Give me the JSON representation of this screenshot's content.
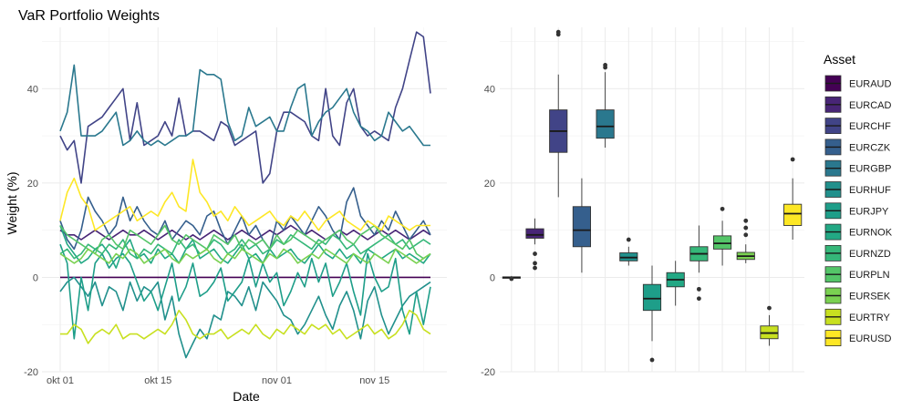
{
  "chart_data": [
    {
      "type": "line",
      "title": "VaR Portfolio Weights",
      "xlabel": "Date",
      "ylabel": "Weight (%)",
      "ylim": [
        -20,
        53
      ],
      "yticks": [
        -20,
        0,
        20,
        40
      ],
      "xlim": [
        0,
        53
      ],
      "xticks": [
        {
          "x": 0,
          "label": "okt 01"
        },
        {
          "x": 14,
          "label": "okt 15"
        },
        {
          "x": 31,
          "label": "nov 01"
        },
        {
          "x": 45,
          "label": "nov 15"
        }
      ],
      "x": [
        0,
        1,
        2,
        3,
        4,
        5,
        6,
        7,
        8,
        9,
        10,
        11,
        12,
        13,
        14,
        15,
        16,
        17,
        18,
        19,
        20,
        21,
        22,
        23,
        24,
        25,
        26,
        27,
        28,
        29,
        30,
        31,
        32,
        33,
        34,
        35,
        36,
        37,
        38,
        39,
        40,
        41,
        42,
        43,
        44,
        45,
        46,
        47,
        48,
        49,
        50,
        51,
        52,
        53
      ],
      "series": [
        {
          "name": "EURAUD",
          "color": "#440154",
          "values": [
            0,
            0,
            0,
            0,
            0,
            0,
            0,
            0,
            0,
            0,
            0,
            0,
            0,
            0,
            0,
            0,
            0,
            0,
            0,
            0,
            0,
            0,
            0,
            0,
            0,
            0,
            0,
            0,
            0,
            0,
            0,
            0,
            0,
            0,
            0,
            0,
            0,
            0,
            0,
            0,
            0,
            0,
            0,
            0,
            0,
            0,
            0,
            0,
            0,
            0,
            0,
            0,
            0,
            0
          ]
        },
        {
          "name": "EURCAD",
          "color": "#482576",
          "values": [
            10,
            9,
            9,
            8,
            9,
            10,
            9,
            8,
            9,
            10,
            9,
            9,
            10,
            9,
            8,
            9,
            10,
            9,
            8,
            9,
            8,
            9,
            10,
            9,
            8,
            9,
            10,
            9,
            8,
            9,
            10,
            9,
            10,
            11,
            10,
            9,
            10,
            9,
            8,
            9,
            10,
            9,
            10,
            9,
            8,
            9,
            10,
            9,
            10,
            9,
            8,
            9,
            10,
            9
          ]
        },
        {
          "name": "EURCHF",
          "color": "#414487",
          "values": [
            30,
            27,
            29,
            20,
            32,
            33,
            34,
            36,
            38,
            40,
            29,
            37,
            28,
            29,
            30,
            33,
            30,
            38,
            30,
            31,
            31,
            30,
            29,
            33,
            32,
            28,
            29,
            30,
            31,
            20,
            22,
            31,
            35,
            35,
            34,
            33,
            30,
            29,
            40,
            30,
            28,
            37,
            40,
            32,
            30,
            31,
            30,
            29,
            36,
            40,
            46,
            52,
            51,
            39
          ]
        },
        {
          "name": "EURCZK",
          "color": "#355F8D",
          "values": [
            12,
            8,
            6,
            10,
            17,
            14,
            12,
            9,
            11,
            17,
            12,
            15,
            12,
            10,
            9,
            12,
            8,
            10,
            12,
            11,
            9,
            13,
            14,
            10,
            7,
            10,
            13,
            9,
            11,
            8,
            6,
            12,
            10,
            13,
            11,
            9,
            12,
            15,
            13,
            10,
            8,
            16,
            19,
            13,
            11,
            9,
            12,
            10,
            14,
            11,
            8,
            10,
            12,
            9
          ]
        },
        {
          "name": "EURGBP",
          "color": "#2A788E",
          "values": [
            31,
            35,
            45,
            30,
            30,
            30,
            31,
            33,
            35,
            28,
            29,
            31,
            29,
            28,
            29,
            28,
            29,
            30,
            30,
            31,
            44,
            43,
            43,
            42,
            33,
            29,
            30,
            36,
            32,
            33,
            34,
            31,
            31,
            36,
            40,
            41,
            30,
            33,
            35,
            36,
            38,
            40,
            35,
            32,
            31,
            29,
            30,
            35,
            33,
            31,
            32,
            30,
            28,
            28
          ]
        },
        {
          "name": "EURHUF",
          "color": "#21908C",
          "values": [
            -3,
            -1,
            0,
            -2,
            -4,
            -1,
            -6,
            -2,
            -3,
            -7,
            -1,
            -5,
            -2,
            -3,
            -1,
            -9,
            -4,
            -12,
            -17,
            -14,
            -11,
            -13,
            -8,
            -9,
            -3,
            -4,
            -6,
            -2,
            -7,
            -1,
            -3,
            -5,
            -8,
            -9,
            -12,
            -10,
            -7,
            -4,
            -8,
            -11,
            -6,
            -3,
            -7,
            -13,
            -5,
            -2,
            -8,
            -12,
            -9,
            -6,
            -4,
            -3,
            -2,
            -1
          ]
        },
        {
          "name": "EURJPY",
          "color": "#1E9E89",
          "values": [
            7,
            3,
            -13,
            0,
            -7,
            3,
            5,
            2,
            4,
            5,
            3,
            -1,
            -5,
            -3,
            -7,
            -2,
            3,
            -5,
            -2,
            3,
            -4,
            -3,
            -1,
            2,
            -5,
            -3,
            -1,
            4,
            -2,
            3,
            -1,
            1,
            -6,
            -3,
            1,
            -2,
            4,
            -1,
            3,
            -4,
            -1,
            3,
            -3,
            -8,
            5,
            0,
            -3,
            -2,
            4,
            -7,
            -12,
            -3,
            -10,
            -2
          ]
        },
        {
          "name": "EURNOK",
          "color": "#22A884",
          "values": [
            11,
            7,
            5,
            3,
            4,
            6,
            7,
            5,
            2,
            6,
            8,
            4,
            5,
            3,
            6,
            4,
            5,
            3,
            6,
            8,
            4,
            5,
            6,
            4,
            3,
            5,
            7,
            4,
            5,
            3,
            6,
            4,
            5,
            6,
            4,
            3,
            5,
            7,
            5,
            4,
            6,
            4,
            5,
            3,
            6,
            5,
            4,
            5,
            6,
            4,
            5,
            4,
            3,
            5
          ]
        },
        {
          "name": "EURNZD",
          "color": "#35B779",
          "values": [
            5,
            6,
            4,
            5,
            7,
            6,
            5,
            7,
            6,
            8,
            5,
            4,
            6,
            5,
            7,
            6,
            5,
            8,
            6,
            7,
            5,
            6,
            8,
            7,
            5,
            6,
            8,
            6,
            7,
            5,
            6,
            8,
            7,
            9,
            8,
            7,
            6,
            8,
            7,
            9,
            8,
            6,
            7,
            5,
            6,
            7,
            8,
            9,
            7,
            8,
            6,
            7,
            8,
            7
          ]
        },
        {
          "name": "EURPLN",
          "color": "#54C568",
          "values": [
            11,
            9,
            8,
            7,
            6,
            5,
            8,
            9,
            7,
            6,
            10,
            9,
            8,
            7,
            9,
            11,
            8,
            7,
            9,
            8,
            7,
            6,
            9,
            8,
            7,
            9,
            6,
            8,
            7,
            8,
            6,
            9,
            7,
            8,
            10,
            9,
            8,
            7,
            8,
            9,
            10,
            8,
            7,
            9,
            10,
            11,
            9,
            8,
            7,
            6,
            8,
            5,
            4,
            5
          ]
        },
        {
          "name": "EURSEK",
          "color": "#7AD151",
          "values": [
            5,
            4,
            3,
            4,
            6,
            5,
            4,
            3,
            5,
            4,
            6,
            5,
            3,
            4,
            5,
            6,
            4,
            3,
            5,
            4,
            5,
            6,
            4,
            3,
            5,
            4,
            6,
            5,
            4,
            3,
            5,
            4,
            6,
            5,
            3,
            4,
            5,
            4,
            6,
            5,
            4,
            3,
            5,
            4,
            3,
            5,
            4,
            3,
            6,
            5,
            4,
            3,
            4,
            5
          ]
        },
        {
          "name": "EURTRY",
          "color": "#C8E020",
          "values": [
            -12,
            -12,
            -10,
            -11,
            -14,
            -12,
            -11,
            -12,
            -10,
            -13,
            -12,
            -12,
            -13,
            -12,
            -11,
            -12,
            -10,
            -7,
            -9,
            -12,
            -13,
            -12,
            -12,
            -11,
            -13,
            -12,
            -11,
            -12,
            -10,
            -12,
            -13,
            -11,
            -12,
            -10,
            -11,
            -12,
            -10,
            -11,
            -10,
            -12,
            -11,
            -13,
            -12,
            -11,
            -10,
            -12,
            -11,
            -13,
            -12,
            -10,
            -7,
            -8,
            -11,
            -12
          ]
        },
        {
          "name": "EURUSD",
          "color": "#FDE725",
          "values": [
            12,
            18,
            21,
            17,
            15,
            10,
            11,
            12,
            13,
            14,
            15,
            12,
            13,
            14,
            13,
            16,
            18,
            15,
            14,
            25,
            18,
            16,
            13,
            14,
            12,
            15,
            13,
            11,
            12,
            13,
            14,
            12,
            11,
            13,
            12,
            14,
            12,
            10,
            12,
            13,
            14,
            12,
            11,
            10,
            12,
            11,
            10,
            13,
            12,
            11,
            10,
            11,
            11,
            11
          ]
        }
      ]
    },
    {
      "type": "box",
      "xlabel": "",
      "ylabel": "",
      "ylim": [
        -20,
        53
      ],
      "yticks": [
        -20,
        0,
        20,
        40
      ],
      "legend_title": "Asset",
      "legend_position": "right",
      "boxes": [
        {
          "name": "EURAUD",
          "color": "#440154",
          "min": -0.4,
          "q1": -0.1,
          "median": 0,
          "q3": 0.1,
          "max": 0.3,
          "outliers": [
            -0.3
          ]
        },
        {
          "name": "EURCAD",
          "color": "#482576",
          "min": 7.0,
          "q1": 8.3,
          "median": 9.0,
          "q3": 10.3,
          "max": 12.5,
          "outliers": [
            2.0,
            3.0,
            5.0
          ]
        },
        {
          "name": "EURCHF",
          "color": "#414487",
          "min": 17.0,
          "q1": 26.5,
          "median": 31.0,
          "q3": 35.5,
          "max": 43.0,
          "outliers": [
            51.5,
            52.0
          ]
        },
        {
          "name": "EURCZK",
          "color": "#355F8D",
          "min": 1.0,
          "q1": 6.5,
          "median": 10.0,
          "q3": 15.0,
          "max": 21.0,
          "outliers": []
        },
        {
          "name": "EURGBP",
          "color": "#2A788E",
          "min": 27.5,
          "q1": 29.5,
          "median": 32.0,
          "q3": 35.5,
          "max": 43.5,
          "outliers": [
            44.5,
            45.0
          ]
        },
        {
          "name": "EURHUF",
          "color": "#21908C",
          "min": 2.5,
          "q1": 3.5,
          "median": 4.2,
          "q3": 5.2,
          "max": 6.5,
          "outliers": [
            8.0
          ]
        },
        {
          "name": "EURJPY",
          "color": "#1E9E89",
          "min": -13.5,
          "q1": -7.0,
          "median": -4.5,
          "q3": -1.5,
          "max": 2.5,
          "outliers": [
            -17.5
          ]
        },
        {
          "name": "EURNOK",
          "color": "#22A884",
          "min": -6.0,
          "q1": -2.0,
          "median": -0.5,
          "q3": 1.0,
          "max": 3.5,
          "outliers": []
        },
        {
          "name": "EURNZD",
          "color": "#35B779",
          "min": 1.0,
          "q1": 3.5,
          "median": 5.0,
          "q3": 6.5,
          "max": 11.0,
          "outliers": [
            -2.5,
            -4.5
          ]
        },
        {
          "name": "EURPLN",
          "color": "#54C568",
          "min": 2.5,
          "q1": 6.0,
          "median": 7.2,
          "q3": 8.8,
          "max": 12.0,
          "outliers": [
            14.5
          ]
        },
        {
          "name": "EURSEK",
          "color": "#7AD151",
          "min": 3.0,
          "q1": 3.8,
          "median": 4.5,
          "q3": 5.3,
          "max": 7.0,
          "outliers": [
            9.0,
            10.5,
            12.0
          ]
        },
        {
          "name": "EURTRY",
          "color": "#C8E020",
          "min": -14.5,
          "q1": -13.0,
          "median": -11.8,
          "q3": -10.3,
          "max": -8.0,
          "outliers": [
            -6.5
          ]
        },
        {
          "name": "EURUSD",
          "color": "#FDE725",
          "min": 8.0,
          "q1": 11.0,
          "median": 13.5,
          "q3": 15.5,
          "max": 21.0,
          "outliers": [
            25.0
          ]
        }
      ]
    }
  ]
}
